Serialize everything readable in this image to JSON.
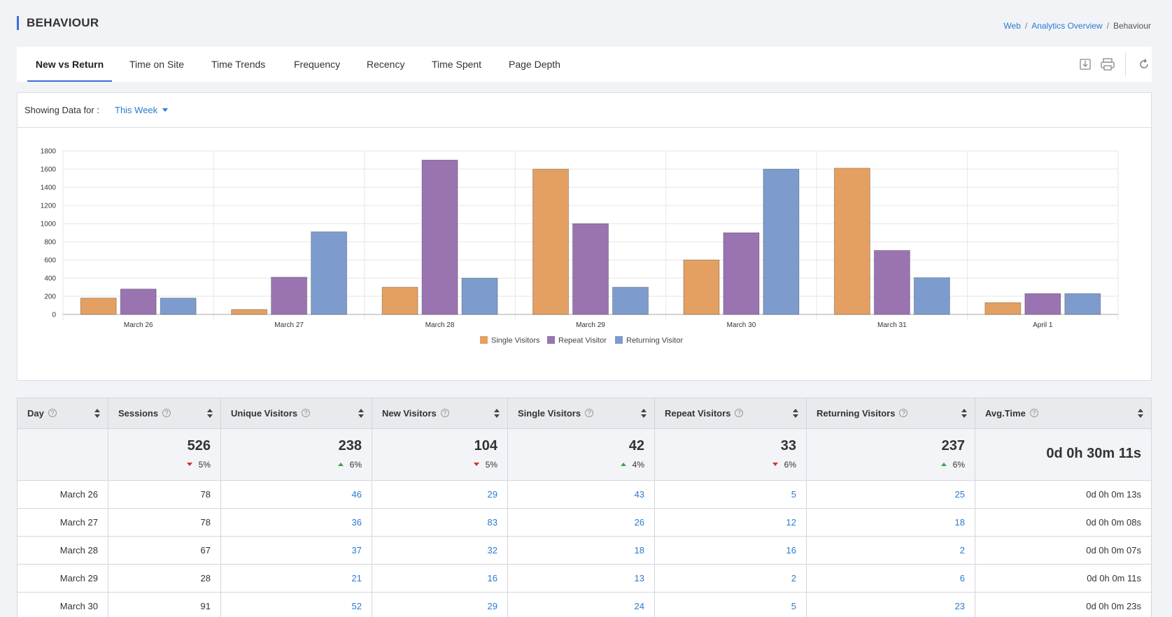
{
  "page": {
    "title": "BEHAVIOUR",
    "breadcrumb": [
      "Web",
      "Analytics Overview",
      "Behaviour"
    ]
  },
  "tabs": [
    {
      "label": "New vs Return",
      "active": true
    },
    {
      "label": "Time on Site"
    },
    {
      "label": "Time Trends"
    },
    {
      "label": "Frequency"
    },
    {
      "label": "Recency"
    },
    {
      "label": "Time Spent"
    },
    {
      "label": "Page Depth"
    }
  ],
  "toolbar": {
    "icons": [
      "download-icon",
      "print-icon",
      "refresh-icon"
    ]
  },
  "filter": {
    "label": "Showing Data for :",
    "value": "This Week"
  },
  "chart_data": {
    "type": "bar",
    "title": "",
    "xlabel": "",
    "ylabel": "",
    "ylim": [
      0,
      1800
    ],
    "yticks": [
      0,
      200,
      400,
      600,
      800,
      1000,
      1200,
      1400,
      1600,
      1800
    ],
    "grid": true,
    "legend": "bottom",
    "categories": [
      "March 26",
      "March 27",
      "March 28",
      "March 29",
      "March 30",
      "March 31",
      "April 1"
    ],
    "series": [
      {
        "name": "Single Visitors",
        "color": "#e3a062",
        "values": [
          180,
          55,
          300,
          1600,
          600,
          1610,
          130
        ]
      },
      {
        "name": "Repeat Visitor",
        "color": "#9a74b0",
        "values": [
          280,
          410,
          1700,
          1000,
          900,
          705,
          230
        ]
      },
      {
        "name": "Returning Visitor",
        "color": "#7d9ccd",
        "values": [
          180,
          910,
          400,
          300,
          1600,
          405,
          230
        ]
      }
    ]
  },
  "table": {
    "columns": [
      "Day",
      "Sessions",
      "Unique Visitors",
      "New Visitors",
      "Single Visitors",
      "Repeat Visitors",
      "Returning Visitors",
      "Avg.Time"
    ],
    "summary": [
      {
        "value": "526",
        "change": "5%",
        "dir": "down"
      },
      {
        "value": "238",
        "change": "6%",
        "dir": "up"
      },
      {
        "value": "104",
        "change": "5%",
        "dir": "down"
      },
      {
        "value": "42",
        "change": "4%",
        "dir": "up"
      },
      {
        "value": "33",
        "change": "6%",
        "dir": "down"
      },
      {
        "value": "237",
        "change": "6%",
        "dir": "up"
      }
    ],
    "summary_avg": "0d 0h 30m 11s",
    "rows": [
      [
        "March 26",
        "78",
        "46",
        "29",
        "43",
        "5",
        "25",
        "0d 0h 0m 13s"
      ],
      [
        "March 27",
        "78",
        "36",
        "83",
        "26",
        "12",
        "18",
        "0d 0h 0m 08s"
      ],
      [
        "March 28",
        "67",
        "37",
        "32",
        "18",
        "16",
        "2",
        "0d 0h 0m 07s"
      ],
      [
        "March 29",
        "28",
        "21",
        "16",
        "13",
        "2",
        "6",
        "0d 0h 0m 11s"
      ],
      [
        "March 30",
        "91",
        "52",
        "29",
        "24",
        "5",
        "23",
        "0d 0h 0m 23s"
      ]
    ]
  }
}
